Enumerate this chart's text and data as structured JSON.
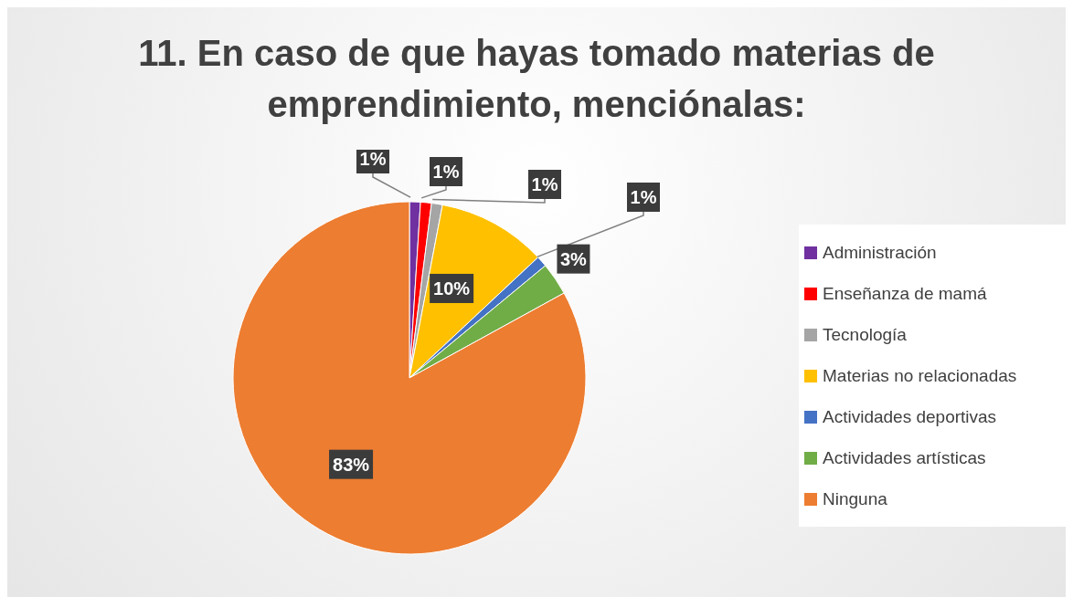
{
  "chart_data": {
    "type": "pie",
    "title": "11. En caso de que hayas tomado materias de emprendimiento, menciónalas:",
    "categories": [
      "Administración",
      "Enseñanza de mamá",
      "Tecnología",
      "Materias no relacionadas",
      "Actividades deportivas",
      "Actividades artísticas",
      "Ninguna"
    ],
    "values": [
      1,
      1,
      1,
      10,
      1,
      3,
      83
    ],
    "value_labels": [
      "1%",
      "1%",
      "1%",
      "10%",
      "1%",
      "3%",
      "83%"
    ],
    "colors": [
      "#7030a0",
      "#ff0000",
      "#a5a5a5",
      "#ffc000",
      "#4472c4",
      "#70ad47",
      "#ed7d31"
    ],
    "legend": "right"
  }
}
